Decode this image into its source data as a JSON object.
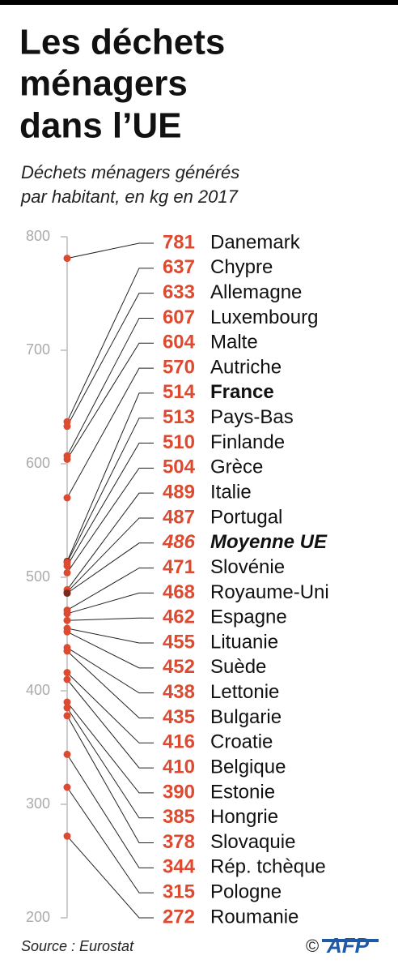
{
  "chart_data": {
    "type": "dot",
    "title": [
      "Les déchets",
      "ménagers",
      "dans l’UE"
    ],
    "subtitle": [
      "Déchets ménagers générés",
      "par habitant, en kg en 2017"
    ],
    "categories": [
      "Danemark",
      "Chypre",
      "Allemagne",
      "Luxembourg",
      "Malte",
      "Autriche",
      "France",
      "Pays-Bas",
      "Finlande",
      "Grèce",
      "Italie",
      "Portugal",
      "Moyenne UE",
      "Slovénie",
      "Royaume-Uni",
      "Espagne",
      "Lituanie",
      "Suède",
      "Lettonie",
      "Bulgarie",
      "Croatie",
      "Belgique",
      "Estonie",
      "Hongrie",
      "Slovaquie",
      "Rép. tchèque",
      "Pologne",
      "Roumanie"
    ],
    "values": [
      781,
      637,
      633,
      607,
      604,
      570,
      514,
      513,
      510,
      504,
      489,
      487,
      486,
      471,
      468,
      462,
      455,
      452,
      438,
      435,
      416,
      410,
      390,
      385,
      378,
      344,
      315,
      272
    ],
    "color": "#dd4a30",
    "highlight_color": "#7a2a1e",
    "bold_rows": [
      6,
      12
    ],
    "italic_rows": [
      12
    ],
    "ylim": [
      200,
      800
    ],
    "yticks": [
      200,
      300,
      400,
      500,
      600,
      700,
      800
    ],
    "source": "Source : Eurostat",
    "credit": "©",
    "logo": "AFP"
  }
}
